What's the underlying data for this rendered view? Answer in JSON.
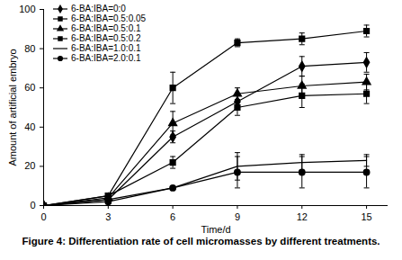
{
  "chart_data": {
    "type": "line",
    "title": "Figure 4: Differentiation rate of cell micromasses by different treatments.",
    "x_label": "Time/d",
    "y_label": "Amount of artificial embryo",
    "x": [
      0,
      3,
      6,
      9,
      12,
      15
    ],
    "xlim": [
      0,
      16
    ],
    "xticks": [
      0,
      3,
      6,
      9,
      12,
      15
    ],
    "ylim": [
      0,
      100
    ],
    "yticks": [
      0,
      20,
      40,
      60,
      80,
      100
    ],
    "grid": false,
    "legend": "top-left",
    "series": [
      {
        "name": "6-BA:IBA=0:0",
        "color": "#000000",
        "marker": "diamond",
        "line_style": "solid",
        "values": [
          0,
          3,
          35,
          53,
          71,
          73
        ],
        "errors": [
          null,
          null,
          3,
          3,
          5,
          5
        ]
      },
      {
        "name": "6-BA:IBA=0.5:0.05",
        "color": "#000000",
        "marker": "square",
        "line_style": "solid",
        "values": [
          0,
          5,
          60,
          83,
          85,
          89
        ],
        "errors": [
          null,
          null,
          8,
          2,
          3,
          3
        ]
      },
      {
        "name": "6-BA:IBA=0.5:0.1",
        "color": "#000000",
        "marker": "triangle",
        "line_style": "solid",
        "values": [
          0,
          4,
          42,
          57,
          61,
          63
        ],
        "errors": [
          null,
          null,
          6,
          3,
          5,
          4
        ]
      },
      {
        "name": "6-BA:IBA=0.5:0.2",
        "color": "#000000",
        "marker": "square",
        "line_style": "solid",
        "values": [
          0,
          5,
          22,
          50,
          56,
          57
        ],
        "errors": [
          null,
          null,
          3,
          4,
          6,
          5
        ]
      },
      {
        "name": "6-BA:IBA=1.0:0.1",
        "color": "#000000",
        "marker": "none",
        "line_style": "solid",
        "values": [
          0,
          3,
          9,
          20,
          22,
          23
        ],
        "errors": [
          null,
          null,
          null,
          7,
          4,
          3
        ]
      },
      {
        "name": "6-BA:IBA=2.0:0.1",
        "color": "#000000",
        "marker": "circle",
        "line_style": "solid",
        "values": [
          0,
          2,
          9,
          17,
          17,
          17
        ],
        "errors": [
          null,
          null,
          null,
          8,
          8,
          8
        ]
      }
    ]
  }
}
